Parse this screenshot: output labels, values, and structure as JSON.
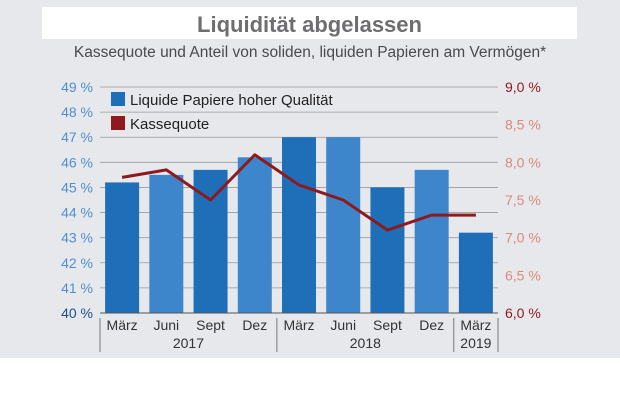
{
  "chart_data": {
    "type": "bar+line",
    "title": "Liquidität abgelassen",
    "subtitle": "Kassequote und Anteil von soliden, liquiden Papieren am Vermögen*",
    "categories": [
      "März",
      "Juni",
      "Sept",
      "Dez",
      "März",
      "Juni",
      "Sept",
      "Dez",
      "März"
    ],
    "year_groups": [
      {
        "label": "2017",
        "from": 0,
        "to": 3
      },
      {
        "label": "2018",
        "from": 4,
        "to": 7
      },
      {
        "label": "2019",
        "from": 8,
        "to": 8
      }
    ],
    "series": [
      {
        "name": "Liquide Papiere hoher Qualität",
        "type": "bar",
        "axis": "left",
        "color": "#1f6fb8",
        "values": [
          45.2,
          45.5,
          45.7,
          46.2,
          47.0,
          47.0,
          45.0,
          45.7,
          43.2
        ]
      },
      {
        "name": "Kassequote",
        "type": "line",
        "axis": "right",
        "color": "#8c1a1e",
        "values": [
          7.8,
          7.9,
          7.5,
          8.1,
          7.7,
          7.5,
          7.1,
          7.3,
          7.3
        ]
      }
    ],
    "left_axis": {
      "ylim": [
        40,
        49
      ],
      "ticks": [
        "40 %",
        "41 %",
        "42 %",
        "43 %",
        "44 %",
        "45 %",
        "46 %",
        "47 %",
        "48 %",
        "49 %"
      ],
      "color": "#1f6fb8"
    },
    "right_axis": {
      "ylim": [
        6.0,
        9.0
      ],
      "ticks": [
        "6,0 %",
        "6,5 %",
        "7,0 %",
        "7,5 %",
        "8,0 %",
        "8,5 %",
        "9,0 %"
      ],
      "color": "#8c1a1e"
    },
    "grid": true,
    "legend": "top-left"
  }
}
